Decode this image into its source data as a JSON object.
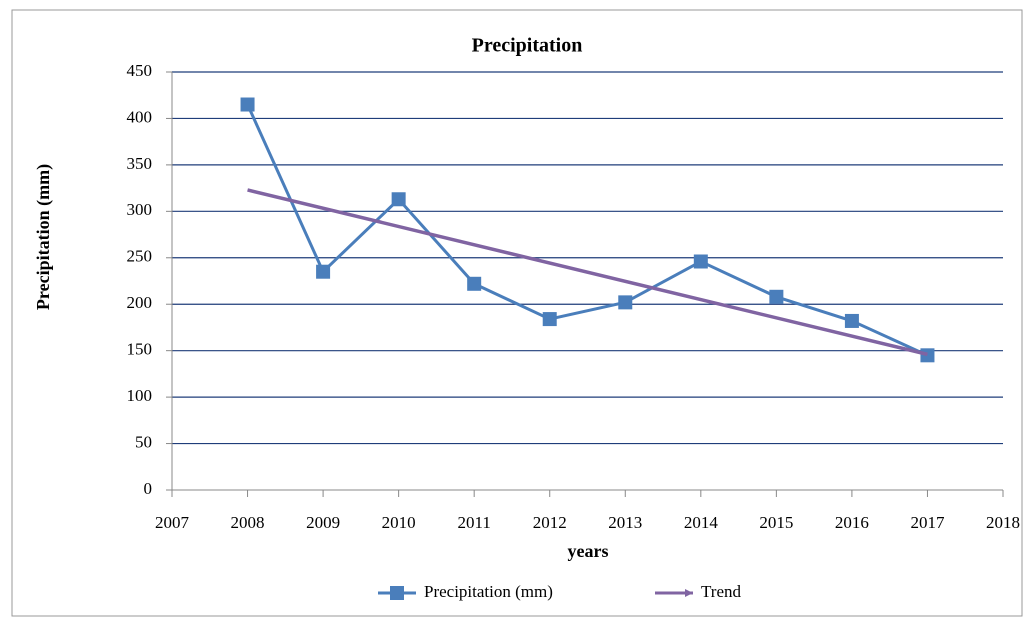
{
  "chart_data": {
    "type": "line",
    "title": "Precipitation",
    "xlabel": "years",
    "ylabel": "Precipitation (mm)",
    "x": [
      2008,
      2009,
      2010,
      2011,
      2012,
      2013,
      2014,
      2015,
      2016,
      2017
    ],
    "series": [
      {
        "name": "Precipitation (mm)",
        "color": "#4a7ebb",
        "values": [
          415,
          235,
          313,
          222,
          184,
          202,
          246,
          208,
          182,
          145
        ]
      },
      {
        "name": "Trend",
        "color": "#8064a2",
        "x": [
          2008,
          2017
        ],
        "values": [
          323,
          146
        ]
      }
    ],
    "xlim": [
      2007,
      2018
    ],
    "xticks": [
      2007,
      2008,
      2009,
      2010,
      2011,
      2012,
      2013,
      2014,
      2015,
      2016,
      2017,
      2018
    ],
    "ylim": [
      0,
      450
    ],
    "yticks": [
      0,
      50,
      100,
      150,
      200,
      250,
      300,
      350,
      400,
      450
    ],
    "grid": true,
    "legend": "bottom"
  }
}
